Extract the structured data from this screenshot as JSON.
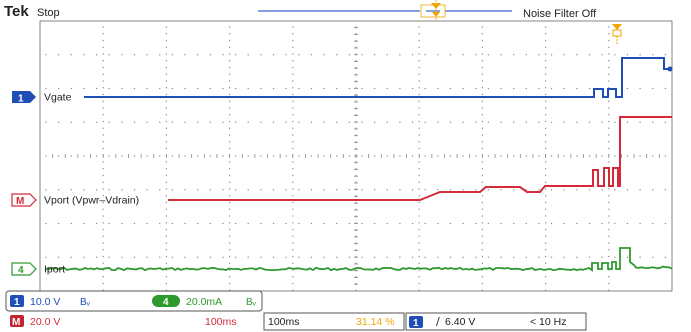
{
  "header": {
    "brand": "Tek",
    "run_state": "Stop",
    "status": "Noise Filter Off"
  },
  "channels": [
    {
      "marker": "1",
      "label": "Vgate",
      "color": "#1f4fb5"
    },
    {
      "marker": "M",
      "label": "Vport (Vpwr–Vdrain)",
      "color": "#d42a3a"
    },
    {
      "marker": "4",
      "label": "Iport",
      "color": "#2e9a2e"
    }
  ],
  "readout": {
    "ch1": {
      "marker": "1",
      "scale": "10.0 V",
      "bw": "Bᵥ"
    },
    "ch4": {
      "marker": "4",
      "scale": "20.0mA",
      "bw": "Bᵥ"
    },
    "math": {
      "marker": "M",
      "scale": "20.0 V",
      "time": "100ms"
    },
    "timebase": "100ms",
    "trigger_pos": "31.14 %",
    "trigger": {
      "marker": "1",
      "slope": "∕",
      "level": "6.40 V"
    },
    "freq": "< 10 Hz"
  },
  "colors": {
    "accent": "#f0a500",
    "ch1": "#1f4fb5",
    "math": "#d42a3a",
    "ch4": "#2e9a2e"
  }
}
